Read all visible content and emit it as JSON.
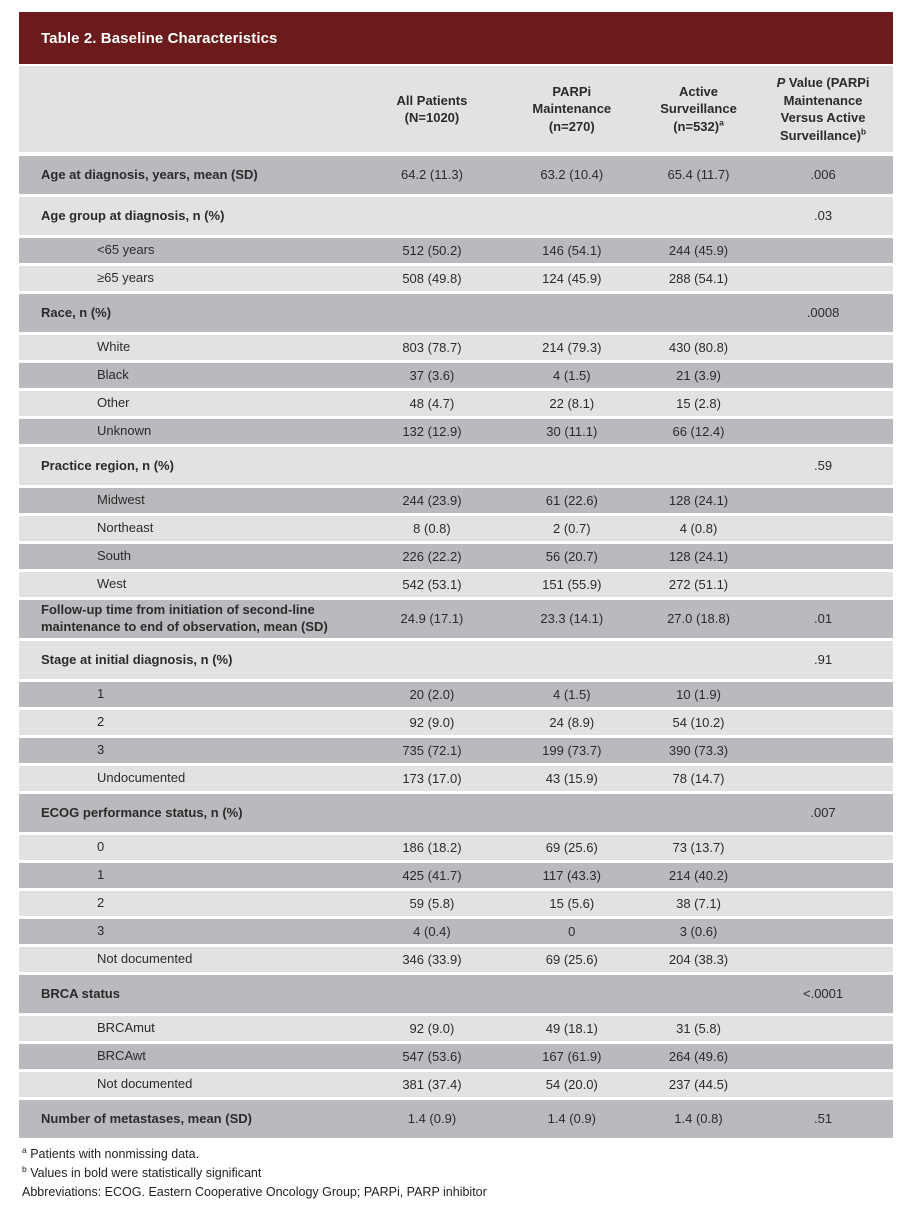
{
  "title": "Table 2. Baseline Characteristics",
  "colors": {
    "header_bar": "#6b1b1c",
    "row_dark": "#b9babd",
    "row_light": "#e2e2e4",
    "header_row_bg": "#e2e2e4",
    "text": "#2b2b2b",
    "title_text": "#ffffff"
  },
  "table": {
    "columns": [
      {
        "lines": [
          "All Patients",
          "(N=1020)"
        ],
        "sup": "",
        "italic_lead": ""
      },
      {
        "lines": [
          "PARPi",
          "Maintenance",
          "(n=270)"
        ],
        "sup": "",
        "italic_lead": ""
      },
      {
        "lines": [
          "Active",
          "Surveillance",
          "(n=532)"
        ],
        "sup": "a",
        "italic_lead": ""
      },
      {
        "lines": [
          " Value (PARPi",
          "Maintenance",
          "Versus Active",
          "Surveillance)"
        ],
        "sup": "b",
        "italic_lead": "P"
      }
    ],
    "rows": [
      {
        "label": "Age at diagnosis, years, mean (SD)",
        "bold": true,
        "values": [
          "64.2 (11.3)",
          "63.2 (10.4)",
          "65.4 (11.7)",
          ".006"
        ]
      },
      {
        "label": "Age group at diagnosis, n (%)",
        "bold": true,
        "values": [
          "",
          "",
          "",
          ".03"
        ]
      },
      {
        "label": "<65 years",
        "bold": false,
        "values": [
          "512 (50.2)",
          "146 (54.1)",
          "244 (45.9)",
          ""
        ]
      },
      {
        "label": "≥65 years",
        "bold": false,
        "values": [
          "508 (49.8)",
          "124 (45.9)",
          "288 (54.1)",
          ""
        ]
      },
      {
        "label": "Race, n (%)",
        "bold": true,
        "values": [
          "",
          "",
          "",
          ".0008"
        ]
      },
      {
        "label": "White",
        "bold": false,
        "values": [
          "803 (78.7)",
          "214 (79.3)",
          "430 (80.8)",
          ""
        ]
      },
      {
        "label": "Black",
        "bold": false,
        "values": [
          "37 (3.6)",
          "4 (1.5)",
          "21 (3.9)",
          ""
        ]
      },
      {
        "label": "Other",
        "bold": false,
        "values": [
          "48 (4.7)",
          "22 (8.1)",
          "15 (2.8)",
          ""
        ]
      },
      {
        "label": "Unknown",
        "bold": false,
        "values": [
          "132 (12.9)",
          "30 (11.1)",
          "66 (12.4)",
          ""
        ]
      },
      {
        "label": "Practice region, n (%)",
        "bold": true,
        "values": [
          "",
          "",
          "",
          ".59"
        ]
      },
      {
        "label": "Midwest",
        "bold": false,
        "values": [
          "244 (23.9)",
          "61 (22.6)",
          "128 (24.1)",
          ""
        ]
      },
      {
        "label": "Northeast",
        "bold": false,
        "values": [
          "8 (0.8)",
          "2 (0.7)",
          "4 (0.8)",
          ""
        ]
      },
      {
        "label": "South",
        "bold": false,
        "values": [
          "226 (22.2)",
          "56 (20.7)",
          "128 (24.1)",
          ""
        ]
      },
      {
        "label": "West",
        "bold": false,
        "values": [
          "542 (53.1)",
          "151 (55.9)",
          "272 (51.1)",
          ""
        ]
      },
      {
        "label": "Follow-up time from initiation of second-line maintenance to end of observation, mean (SD)",
        "bold": true,
        "values": [
          "24.9 (17.1)",
          "23.3 (14.1)",
          "27.0 (18.8)",
          ".01"
        ]
      },
      {
        "label": "Stage at initial diagnosis, n (%)",
        "bold": true,
        "values": [
          "",
          "",
          "",
          ".91"
        ]
      },
      {
        "label": "1",
        "bold": false,
        "values": [
          "20 (2.0)",
          "4 (1.5)",
          "10 (1.9)",
          ""
        ]
      },
      {
        "label": "2",
        "bold": false,
        "values": [
          "92 (9.0)",
          "24 (8.9)",
          "54 (10.2)",
          ""
        ]
      },
      {
        "label": "3",
        "bold": false,
        "values": [
          "735 (72.1)",
          "199 (73.7)",
          "390 (73.3)",
          ""
        ]
      },
      {
        "label": "Undocumented",
        "bold": false,
        "values": [
          "173 (17.0)",
          "43 (15.9)",
          "78 (14.7)",
          ""
        ]
      },
      {
        "label": "ECOG performance status, n (%)",
        "bold": true,
        "values": [
          "",
          "",
          "",
          ".007"
        ]
      },
      {
        "label": "0",
        "bold": false,
        "values": [
          "186 (18.2)",
          "69 (25.6)",
          "73 (13.7)",
          ""
        ]
      },
      {
        "label": "1",
        "bold": false,
        "values": [
          "425 (41.7)",
          "117 (43.3)",
          "214 (40.2)",
          ""
        ]
      },
      {
        "label": "2",
        "bold": false,
        "values": [
          "59 (5.8)",
          "15 (5.6)",
          "38 (7.1)",
          ""
        ]
      },
      {
        "label": "3",
        "bold": false,
        "values": [
          "4 (0.4)",
          "0",
          "3 (0.6)",
          ""
        ]
      },
      {
        "label": "Not documented",
        "bold": false,
        "values": [
          "346 (33.9)",
          "69 (25.6)",
          "204 (38.3)",
          ""
        ]
      },
      {
        "label": "BRCA status",
        "bold": true,
        "values": [
          "",
          "",
          "",
          "<.0001"
        ]
      },
      {
        "label": "BRCAmut",
        "bold": false,
        "values": [
          "92 (9.0)",
          "49 (18.1)",
          "31 (5.8)",
          ""
        ]
      },
      {
        "label": "BRCAwt",
        "bold": false,
        "values": [
          "547 (53.6)",
          "167 (61.9)",
          "264 (49.6)",
          ""
        ]
      },
      {
        "label": "Not documented",
        "bold": false,
        "values": [
          "381 (37.4)",
          "54 (20.0)",
          "237 (44.5)",
          ""
        ]
      },
      {
        "label": "Number of metastases, mean (SD)",
        "bold": true,
        "values": [
          "1.4 (0.9)",
          "1.4 (0.9)",
          "1.4 (0.8)",
          ".51"
        ]
      }
    ]
  },
  "footnotes": [
    {
      "sup": "a",
      "text": "Patients with nonmissing data."
    },
    {
      "sup": "b",
      "text": "Values in bold were statistically significant"
    },
    {
      "sup": "",
      "text": "Abbreviations: ECOG. Eastern Cooperative Oncology Group; PARPi, PARP inhibitor"
    }
  ]
}
